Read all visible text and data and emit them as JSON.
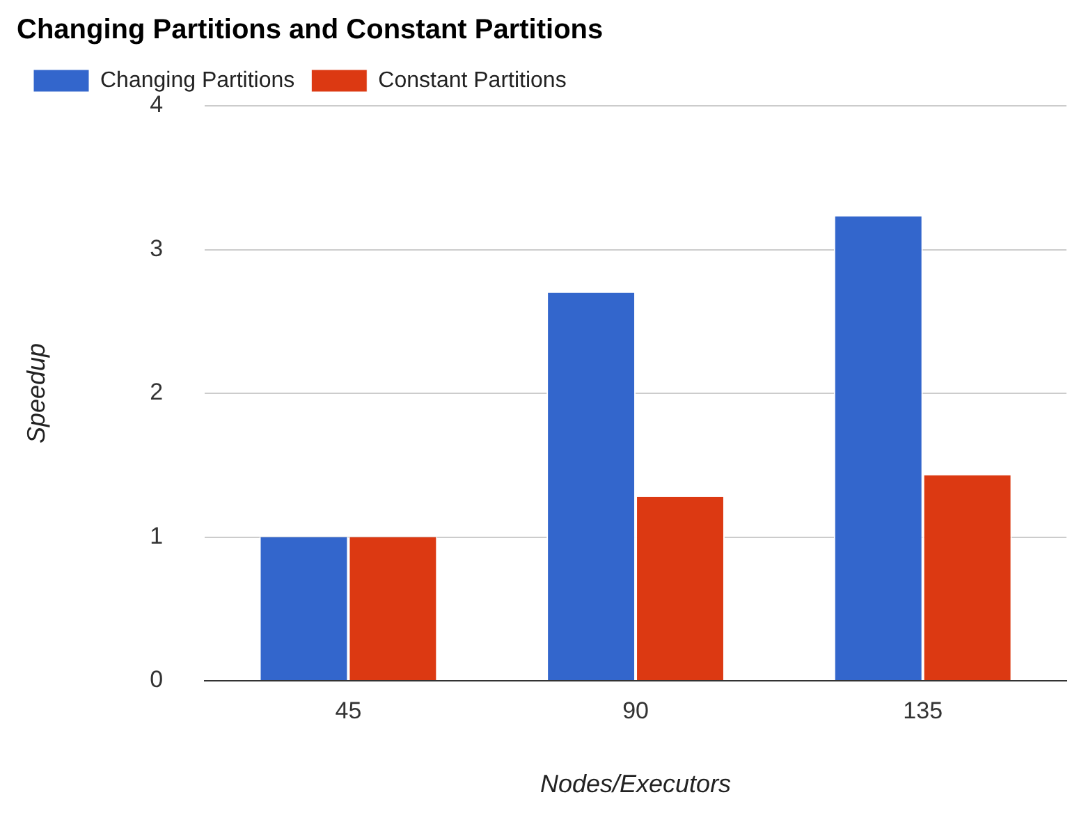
{
  "chart_data": {
    "type": "bar",
    "title": "Changing Partitions and Constant Partitions",
    "xlabel": "Nodes/Executors",
    "ylabel": "Speedup",
    "categories": [
      "45",
      "90",
      "135"
    ],
    "series": [
      {
        "name": "Changing Partitions",
        "color": "#3366cc",
        "values": [
          1,
          2.7,
          3.23
        ]
      },
      {
        "name": "Constant Partitions",
        "color": "#dc3912",
        "values": [
          1,
          1.28,
          1.43
        ]
      }
    ],
    "ylim": [
      0,
      4
    ],
    "yticks": [
      0,
      1,
      2,
      3,
      4
    ],
    "grid": "y",
    "legend": "top left"
  }
}
